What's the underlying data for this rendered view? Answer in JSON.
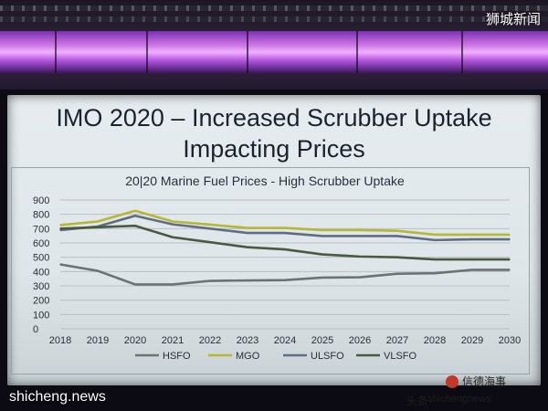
{
  "watermarks": {
    "top_right": "狮城新闻",
    "bottom_left": "shicheng.news",
    "bottom_right_prefix": "头条",
    "bottom_right_site": "shichengnews",
    "logo_text": "信德海事"
  },
  "slide": {
    "title_line1": "IMO 2020 – Increased Scrubber Uptake",
    "title_line2": "Impacting Prices"
  },
  "chart_data": {
    "type": "line",
    "title": "20|20 Marine Fuel Prices - High Scrubber Uptake",
    "x": [
      "2018",
      "2019",
      "2020",
      "2021",
      "2022",
      "2023",
      "2024",
      "2025",
      "2026",
      "2027",
      "2028",
      "2029",
      "2030"
    ],
    "yticks": [
      0,
      100,
      200,
      300,
      400,
      500,
      600,
      700,
      800,
      900
    ],
    "ylim": [
      0,
      900
    ],
    "grid": true,
    "legend_position": "bottom",
    "series": [
      {
        "name": "HSFO",
        "color": "#6d7178",
        "values": [
          450,
          405,
          310,
          310,
          335,
          338,
          340,
          358,
          360,
          385,
          388,
          412,
          412
        ]
      },
      {
        "name": "MGO",
        "color": "#b7b733",
        "values": [
          725,
          750,
          825,
          750,
          728,
          705,
          705,
          690,
          690,
          685,
          658,
          658,
          658
        ]
      },
      {
        "name": "ULSFO",
        "color": "#5f6d84",
        "values": [
          690,
          715,
          790,
          730,
          700,
          670,
          670,
          648,
          648,
          648,
          620,
          625,
          625
        ]
      },
      {
        "name": "VLSFO",
        "color": "#4a5a3e",
        "values": [
          700,
          710,
          720,
          640,
          605,
          570,
          555,
          520,
          505,
          500,
          485,
          485,
          485
        ]
      }
    ]
  }
}
